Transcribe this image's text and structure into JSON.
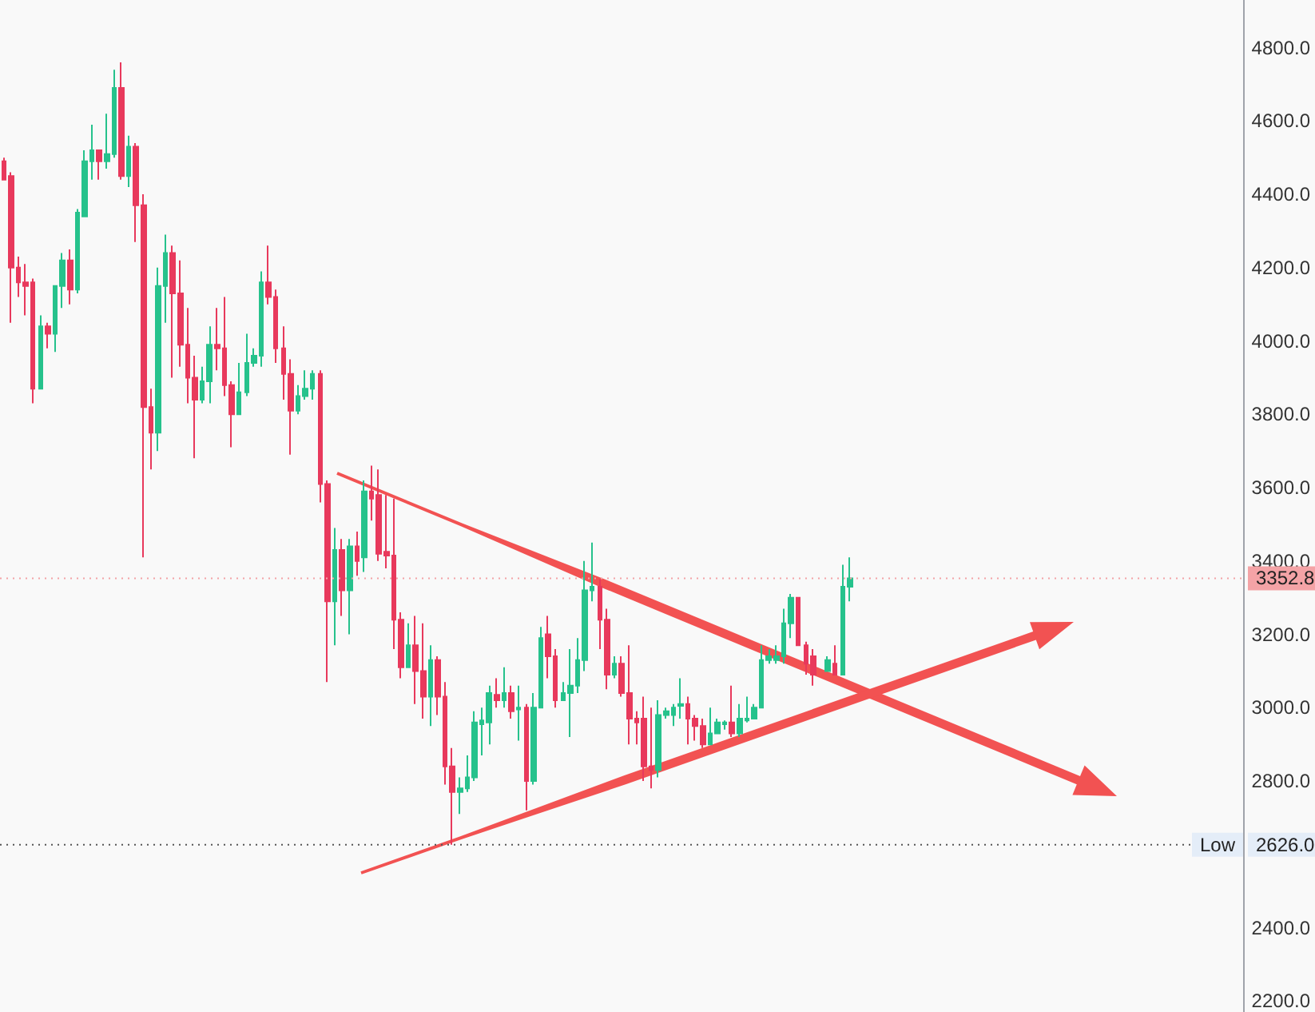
{
  "chart_data": {
    "type": "candlestick",
    "categories": [
      null,
      null,
      null,
      null,
      null,
      null,
      null,
      null,
      null,
      null,
      null,
      null,
      null,
      null,
      null,
      null,
      null,
      null,
      null,
      null,
      null,
      null,
      null,
      null,
      null,
      null,
      null,
      null,
      null,
      null,
      null,
      null,
      null,
      null,
      null,
      null,
      null,
      null,
      null,
      null,
      null,
      null,
      null,
      null,
      null,
      null,
      null,
      null,
      null,
      null,
      null,
      null,
      null,
      null,
      null,
      null,
      null,
      null,
      null,
      null,
      null,
      null,
      null,
      null,
      null,
      null,
      null,
      null,
      null,
      null,
      null,
      null,
      null,
      null,
      null,
      null,
      null,
      null,
      null,
      null,
      null,
      null,
      null,
      null,
      null,
      null,
      null,
      null,
      null,
      null,
      null,
      null,
      null,
      null,
      null,
      null,
      null,
      null,
      null,
      null,
      null,
      null,
      null,
      null,
      null,
      null,
      null,
      null,
      null,
      null,
      null,
      null,
      null,
      null,
      null,
      null,
      null,
      null,
      null,
      null,
      null,
      null,
      null,
      null,
      null,
      null,
      null,
      null,
      null,
      null,
      null,
      null,
      null,
      null,
      null,
      null,
      null,
      null,
      null,
      null,
      null,
      null,
      null,
      null,
      null,
      null,
      null,
      null,
      null,
      null,
      null,
      null,
      null,
      null,
      null,
      null,
      null,
      null,
      null,
      null,
      null,
      null,
      null,
      null,
      null,
      null,
      null,
      null,
      null
    ],
    "ohlc": [
      [
        4490,
        4500,
        4440,
        4440
      ],
      [
        4450,
        4460,
        4050,
        4200
      ],
      [
        4200,
        4230,
        4120,
        4160
      ],
      [
        4160,
        4210,
        4070,
        4150
      ],
      [
        4160,
        4170,
        3830,
        3870
      ],
      [
        3870,
        4070,
        3870,
        4040
      ],
      [
        4040,
        4050,
        3980,
        4020
      ],
      [
        4020,
        4150,
        3970,
        4150
      ],
      [
        4150,
        4240,
        4090,
        4220
      ],
      [
        4220,
        4250,
        4100,
        4140
      ],
      [
        4140,
        4360,
        4130,
        4350
      ],
      [
        4340,
        4520,
        4340,
        4490
      ],
      [
        4490,
        4590,
        4440,
        4520
      ],
      [
        4520,
        4520,
        4440,
        4490
      ],
      [
        4490,
        4620,
        4470,
        4510
      ],
      [
        4510,
        4740,
        4500,
        4690
      ],
      [
        4690,
        4760,
        4440,
        4450
      ],
      [
        4450,
        4560,
        4420,
        4530
      ],
      [
        4530,
        4540,
        4270,
        4370
      ],
      [
        4370,
        4400,
        3410,
        3820
      ],
      [
        3820,
        3870,
        3650,
        3750
      ],
      [
        3750,
        4200,
        3700,
        4150
      ],
      [
        4150,
        4290,
        4050,
        4240
      ],
      [
        4240,
        4260,
        3900,
        4130
      ],
      [
        4130,
        4220,
        3930,
        3990
      ],
      [
        3990,
        4090,
        3830,
        3900
      ],
      [
        3900,
        3960,
        3680,
        3840
      ],
      [
        3840,
        3930,
        3830,
        3890
      ],
      [
        3890,
        4040,
        3830,
        3990
      ],
      [
        3990,
        4090,
        3920,
        3980
      ],
      [
        3980,
        4120,
        3850,
        3880
      ],
      [
        3880,
        3890,
        3710,
        3800
      ],
      [
        3800,
        3940,
        3800,
        3860
      ],
      [
        3860,
        4020,
        3850,
        3940
      ],
      [
        3940,
        3980,
        3930,
        3960
      ],
      [
        3960,
        4190,
        3930,
        4160
      ],
      [
        4160,
        4260,
        4100,
        4120
      ],
      [
        4120,
        4140,
        3940,
        3980
      ],
      [
        3980,
        4040,
        3840,
        3910
      ],
      [
        3910,
        3950,
        3690,
        3810
      ],
      [
        3810,
        3880,
        3800,
        3850
      ],
      [
        3850,
        3920,
        3840,
        3870
      ],
      [
        3870,
        3920,
        3840,
        3910
      ],
      [
        3910,
        3920,
        3560,
        3610
      ],
      [
        3610,
        3620,
        3070,
        3290
      ],
      [
        3290,
        3490,
        3170,
        3430
      ],
      [
        3430,
        3460,
        3250,
        3320
      ],
      [
        3320,
        3460,
        3200,
        3440
      ],
      [
        3440,
        3480,
        3360,
        3400
      ],
      [
        3410,
        3620,
        3370,
        3590
      ],
      [
        3590,
        3660,
        3510,
        3570
      ],
      [
        3580,
        3650,
        3400,
        3420
      ],
      [
        3425,
        3580,
        3380,
        3415
      ],
      [
        3415,
        3570,
        3160,
        3240
      ],
      [
        3240,
        3260,
        3080,
        3110
      ],
      [
        3110,
        3230,
        3110,
        3170
      ],
      [
        3170,
        3250,
        3010,
        3100
      ],
      [
        3100,
        3230,
        2970,
        3030
      ],
      [
        3030,
        3170,
        2950,
        3130
      ],
      [
        3130,
        3140,
        2980,
        3030
      ],
      [
        3030,
        3070,
        2790,
        2840
      ],
      [
        2840,
        2890,
        2626,
        2770
      ],
      [
        2770,
        2810,
        2710,
        2780
      ],
      [
        2780,
        2870,
        2770,
        2810
      ],
      [
        2810,
        2990,
        2800,
        2960
      ],
      [
        2955,
        3000,
        2870,
        2965
      ],
      [
        2960,
        3060,
        2900,
        3040
      ],
      [
        3035,
        3080,
        3000,
        3020
      ],
      [
        3020,
        3110,
        3000,
        3040
      ],
      [
        3040,
        3060,
        2970,
        2990
      ],
      [
        2995,
        3060,
        2910,
        3000
      ],
      [
        3000,
        3010,
        2720,
        2800
      ],
      [
        2800,
        3040,
        2790,
        3000
      ],
      [
        3000,
        3220,
        3000,
        3190
      ],
      [
        3200,
        3250,
        3080,
        3140
      ],
      [
        3140,
        3160,
        3000,
        3020
      ],
      [
        3020,
        3070,
        3020,
        3040
      ],
      [
        3040,
        3160,
        2920,
        3060
      ],
      [
        3060,
        3190,
        3040,
        3130
      ],
      [
        3130,
        3400,
        3100,
        3320
      ],
      [
        3320,
        3450,
        3290,
        3330
      ],
      [
        3330,
        3350,
        3160,
        3240
      ],
      [
        3240,
        3270,
        3050,
        3090
      ],
      [
        3090,
        3140,
        3080,
        3120
      ],
      [
        3120,
        3140,
        3030,
        3040
      ],
      [
        3040,
        3170,
        2900,
        2970
      ],
      [
        2970,
        2990,
        2900,
        2960
      ],
      [
        2970,
        3030,
        2800,
        2840
      ],
      [
        2840,
        3000,
        2780,
        2830
      ],
      [
        2830,
        3020,
        2810,
        2980
      ],
      [
        2980,
        3000,
        2970,
        2990
      ],
      [
        2980,
        3010,
        2950,
        3000
      ],
      [
        3005,
        3080,
        2970,
        3010
      ],
      [
        3010,
        3030,
        2900,
        2970
      ],
      [
        2970,
        2980,
        2910,
        2950
      ],
      [
        2950,
        2970,
        2890,
        2900
      ],
      [
        2900,
        3000,
        2900,
        2930
      ],
      [
        2930,
        2970,
        2930,
        2960
      ],
      [
        2955,
        2965,
        2940,
        2960
      ],
      [
        2960,
        3060,
        2920,
        2930
      ],
      [
        2930,
        3010,
        2920,
        2970
      ],
      [
        2965,
        3030,
        2960,
        2970
      ],
      [
        2970,
        3010,
        2970,
        3000
      ],
      [
        3000,
        3170,
        3000,
        3130
      ],
      [
        3130,
        3160,
        3120,
        3140
      ],
      [
        3130,
        3170,
        3120,
        3140
      ],
      [
        3140,
        3270,
        3120,
        3230
      ],
      [
        3230,
        3310,
        3190,
        3300
      ],
      [
        3300,
        3300,
        3170,
        3170
      ],
      [
        3170,
        3180,
        3090,
        3120
      ],
      [
        3140,
        3160,
        3060,
        3090
      ],
      null,
      [
        3100,
        3140,
        3100,
        3130
      ],
      [
        3120,
        3170,
        3090,
        3090
      ],
      [
        3090,
        3390,
        3090,
        3330
      ],
      [
        3330,
        3410,
        3290,
        3352.8
      ],
      null,
      null,
      null,
      null,
      null,
      null,
      null,
      null,
      null,
      null,
      null,
      null,
      null,
      null,
      null,
      null,
      null,
      null,
      null,
      null,
      null,
      null,
      null,
      null,
      null,
      null,
      null,
      null,
      null,
      null,
      null,
      null,
      null,
      null,
      null,
      null,
      null,
      null,
      null,
      null,
      null,
      null,
      null,
      null,
      null,
      null,
      null,
      null,
      null,
      null,
      null,
      null,
      null
    ],
    "colors": [
      "#e8395c",
      "#e8395c",
      "#e8395c",
      "#e8395c",
      "#e8395c",
      "#26c28c",
      "#e8395c",
      "#26c28c",
      "#26c28c",
      "#e8395c",
      "#26c28c",
      "#26c28c",
      "#26c28c",
      "#e8395c",
      "#26c28c",
      "#26c28c",
      "#e8395c",
      "#26c28c",
      "#e8395c",
      "#e8395c",
      "#e8395c",
      "#26c28c",
      "#26c28c",
      "#e8395c",
      "#e8395c",
      "#e8395c",
      "#e8395c",
      "#26c28c",
      "#26c28c",
      "#e8395c",
      "#e8395c",
      "#e8395c",
      "#26c28c",
      "#26c28c",
      "#26c28c",
      "#26c28c",
      "#e8395c",
      "#e8395c",
      "#e8395c",
      "#e8395c",
      "#26c28c",
      "#26c28c",
      "#26c28c",
      "#e8395c",
      "#e8395c",
      "#26c28c",
      "#e8395c",
      "#26c28c",
      "#e8395c",
      "#26c28c",
      "#e8395c",
      "#e8395c",
      "#e8395c",
      "#e8395c",
      "#e8395c",
      "#26c28c",
      "#e8395c",
      "#e8395c",
      "#26c28c",
      "#e8395c",
      "#e8395c",
      "#e8395c",
      "#26c28c",
      "#26c28c",
      "#26c28c",
      "#26c28c",
      "#26c28c",
      "#e8395c",
      "#26c28c",
      "#e8395c",
      "#26c28c",
      "#e8395c",
      "#26c28c",
      "#26c28c",
      "#e8395c",
      "#e8395c",
      "#26c28c",
      "#26c28c",
      "#26c28c",
      "#26c28c",
      "#26c28c",
      "#e8395c",
      "#e8395c",
      "#26c28c",
      "#e8395c",
      "#e8395c",
      "#e8395c",
      "#e8395c",
      "#e8395c",
      "#26c28c",
      "#26c28c",
      "#26c28c",
      "#26c28c",
      "#e8395c",
      "#e8395c",
      "#e8395c",
      "#26c28c",
      "#26c28c",
      "#26c28c",
      "#e8395c",
      "#26c28c",
      "#26c28c",
      "#26c28c",
      "#26c28c",
      "#26c28c",
      "#26c28c",
      "#26c28c",
      "#26c28c",
      "#e8395c",
      "#e8395c",
      "#e8395c",
      null,
      "#26c28c",
      "#e8395c",
      "#26c28c",
      "#26c28c",
      null,
      null,
      null,
      null,
      null,
      null,
      null,
      null,
      null,
      null,
      null,
      null,
      null,
      null,
      null,
      null,
      null,
      null,
      null,
      null,
      null,
      null,
      null,
      null,
      null,
      null,
      null,
      null,
      null,
      null,
      null,
      null,
      null,
      null,
      null,
      null,
      null,
      null,
      null,
      null,
      null,
      null,
      null,
      null,
      null,
      null,
      null,
      null,
      null,
      null,
      null,
      null,
      null
    ],
    "ylim": [
      2170,
      4930
    ],
    "yticks": [
      {
        "value": 2200,
        "label": "2200.0"
      },
      {
        "value": 2400,
        "label": "2400.0"
      },
      {
        "value": 2800,
        "label": "2800.0"
      },
      {
        "value": 3000,
        "label": "3000.0"
      },
      {
        "value": 3200,
        "label": "3200.0"
      },
      {
        "value": 3400,
        "label": "3400.0"
      },
      {
        "value": 3600,
        "label": "3600.0"
      },
      {
        "value": 3800,
        "label": "3800.0"
      },
      {
        "value": 4000,
        "label": "4000.0"
      },
      {
        "value": 4200,
        "label": "4200.0"
      },
      {
        "value": 4400,
        "label": "4400.0"
      },
      {
        "value": 4600,
        "label": "4600.0"
      },
      {
        "value": 4800,
        "label": "4800.0"
      }
    ],
    "ref_lines": [
      {
        "axis": "y",
        "value": 3352.8,
        "label": "3352.8",
        "color": "#f4a3a6",
        "line_style": "dotted"
      },
      {
        "axis": "y",
        "value": 2626,
        "label": "2626.0",
        "color": "#555555",
        "line_style": "dotted"
      }
    ],
    "annotations": [
      {
        "text": "Low",
        "y": 2626
      }
    ]
  }
}
